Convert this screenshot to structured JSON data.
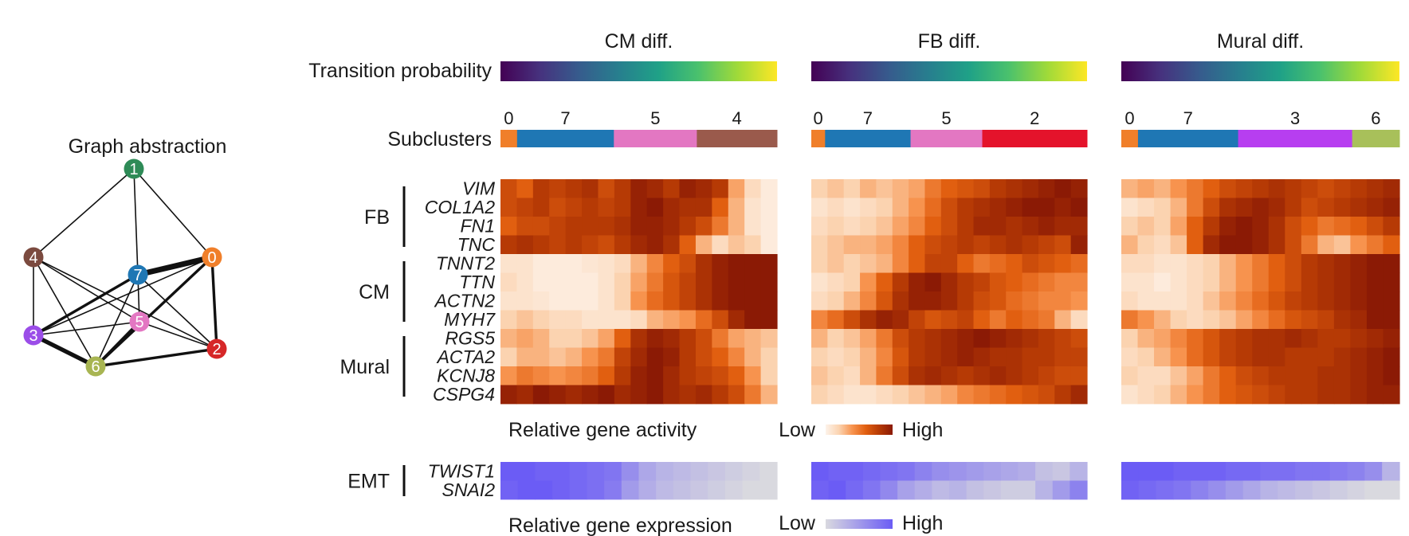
{
  "graph": {
    "title": "Graph abstraction",
    "nodes": [
      {
        "id": "1",
        "color": "#2e8b57"
      },
      {
        "id": "4",
        "color": "#7b4a3f"
      },
      {
        "id": "7",
        "color": "#1f77b4"
      },
      {
        "id": "0",
        "color": "#f07f2a"
      },
      {
        "id": "5",
        "color": "#e377c2"
      },
      {
        "id": "3",
        "color": "#9b4de8"
      },
      {
        "id": "6",
        "color": "#a8b552"
      },
      {
        "id": "2",
        "color": "#d62728"
      }
    ],
    "edges": [
      {
        "a": "1",
        "b": "4",
        "weight": 1
      },
      {
        "a": "1",
        "b": "7",
        "weight": 1
      },
      {
        "a": "1",
        "b": "0",
        "weight": 1
      },
      {
        "a": "4",
        "b": "3",
        "weight": 1
      },
      {
        "a": "4",
        "b": "6",
        "weight": 1
      },
      {
        "a": "4",
        "b": "5",
        "weight": 1
      },
      {
        "a": "4",
        "b": "2",
        "weight": 1
      },
      {
        "a": "7",
        "b": "0",
        "weight": 4
      },
      {
        "a": "7",
        "b": "3",
        "weight": 2
      },
      {
        "a": "7",
        "b": "6",
        "weight": 1
      },
      {
        "a": "7",
        "b": "2",
        "weight": 1
      },
      {
        "a": "7",
        "b": "5",
        "weight": 1
      },
      {
        "a": "0",
        "b": "3",
        "weight": 1
      },
      {
        "a": "0",
        "b": "6",
        "weight": 2
      },
      {
        "a": "0",
        "b": "2",
        "weight": 2
      },
      {
        "a": "5",
        "b": "3",
        "weight": 1
      },
      {
        "a": "5",
        "b": "2",
        "weight": 1
      },
      {
        "a": "5",
        "b": "6",
        "weight": 2
      },
      {
        "a": "3",
        "b": "6",
        "weight": 3
      },
      {
        "a": "6",
        "b": "2",
        "weight": 2
      }
    ]
  },
  "labels": {
    "transition_probability": "Transition probability",
    "subclusters": "Subclusters",
    "relative_gene_activity": "Relative gene activity",
    "relative_gene_expression": "Relative gene expression",
    "low": "Low",
    "high": "High"
  },
  "colors": {
    "viridis": [
      "#440154",
      "#46327e",
      "#365c8d",
      "#277f8e",
      "#1fa187",
      "#4ac16d",
      "#a0da39",
      "#fde725"
    ],
    "activity_scale": [
      "#fdf3ea",
      "#fbd3b0",
      "#f7934e",
      "#e15f10",
      "#b63a05",
      "#8b1a05"
    ],
    "expression_scale": [
      "#d9d9df",
      "#6b5cf5"
    ]
  },
  "gene_groups": [
    {
      "name": "FB",
      "genes": [
        "VIM",
        "COL1A2",
        "FN1",
        "TNC"
      ]
    },
    {
      "name": "CM",
      "genes": [
        "TNNT2",
        "TTN",
        "ACTN2",
        "MYH7"
      ]
    },
    {
      "name": "Mural",
      "genes": [
        "RGS5",
        "ACTA2",
        "KCNJ8",
        "CSPG4"
      ]
    }
  ],
  "emt": {
    "name": "EMT",
    "genes": [
      "TWIST1",
      "SNAI2"
    ]
  },
  "panels": [
    {
      "title": "CM diff.",
      "subclusters": [
        {
          "label": "0",
          "frac": 0.06,
          "color": "#f07f2a"
        },
        {
          "label": "7",
          "frac": 0.35,
          "color": "#1f77b4"
        },
        {
          "label": "5",
          "frac": 0.3,
          "color": "#e377c2"
        },
        {
          "label": "4",
          "frac": 0.29,
          "color": "#9a5a4c"
        }
      ],
      "activity": [
        [
          0.7,
          0.6,
          0.8,
          0.75,
          0.8,
          0.85,
          0.7,
          0.8,
          0.95,
          0.9,
          0.8,
          0.95,
          0.9,
          0.8,
          0.35,
          0.15,
          0.05
        ],
        [
          0.7,
          0.75,
          0.8,
          0.7,
          0.75,
          0.8,
          0.75,
          0.8,
          0.95,
          1.0,
          0.9,
          0.85,
          0.85,
          0.6,
          0.3,
          0.1,
          0.05
        ],
        [
          0.6,
          0.7,
          0.7,
          0.75,
          0.8,
          0.8,
          0.8,
          0.85,
          0.95,
          0.95,
          0.9,
          0.8,
          0.7,
          0.5,
          0.3,
          0.1,
          0.05
        ],
        [
          0.8,
          0.85,
          0.8,
          0.75,
          0.8,
          0.75,
          0.7,
          0.8,
          0.9,
          0.95,
          0.85,
          0.6,
          0.3,
          0.15,
          0.25,
          0.2,
          0.05
        ],
        [
          0.1,
          0.1,
          0.05,
          0.05,
          0.05,
          0.08,
          0.1,
          0.15,
          0.3,
          0.45,
          0.6,
          0.7,
          0.85,
          0.95,
          1.0,
          1.0,
          1.0
        ],
        [
          0.15,
          0.1,
          0.05,
          0.05,
          0.05,
          0.05,
          0.1,
          0.2,
          0.35,
          0.5,
          0.65,
          0.75,
          0.85,
          0.95,
          1.0,
          1.0,
          1.0
        ],
        [
          0.1,
          0.1,
          0.08,
          0.05,
          0.05,
          0.05,
          0.1,
          0.2,
          0.4,
          0.55,
          0.65,
          0.75,
          0.85,
          0.95,
          1.0,
          1.0,
          1.0
        ],
        [
          0.2,
          0.25,
          0.2,
          0.15,
          0.15,
          0.1,
          0.1,
          0.1,
          0.15,
          0.3,
          0.35,
          0.4,
          0.55,
          0.7,
          0.9,
          1.0,
          1.0
        ],
        [
          0.3,
          0.35,
          0.3,
          0.2,
          0.2,
          0.25,
          0.35,
          0.6,
          0.85,
          0.95,
          0.9,
          0.8,
          0.7,
          0.5,
          0.35,
          0.3,
          0.25
        ],
        [
          0.2,
          0.3,
          0.3,
          0.25,
          0.3,
          0.4,
          0.5,
          0.75,
          0.9,
          1.0,
          0.95,
          0.8,
          0.7,
          0.6,
          0.45,
          0.3,
          0.2
        ],
        [
          0.4,
          0.5,
          0.45,
          0.4,
          0.45,
          0.5,
          0.6,
          0.8,
          0.95,
          1.0,
          0.9,
          0.8,
          0.75,
          0.7,
          0.6,
          0.4,
          0.2
        ],
        [
          0.95,
          0.9,
          1.0,
          0.95,
          0.9,
          0.95,
          1.0,
          0.9,
          0.95,
          1.0,
          0.9,
          0.85,
          0.9,
          0.8,
          0.7,
          0.5,
          0.3
        ]
      ],
      "expression": [
        [
          1.0,
          1.0,
          0.95,
          0.95,
          0.9,
          0.85,
          0.8,
          0.6,
          0.4,
          0.3,
          0.25,
          0.2,
          0.15,
          0.1,
          0.05,
          0.0
        ],
        [
          0.95,
          1.0,
          1.0,
          0.95,
          0.9,
          0.85,
          0.75,
          0.5,
          0.35,
          0.25,
          0.2,
          0.15,
          0.1,
          0.05,
          0.0,
          0.0
        ]
      ]
    },
    {
      "title": "FB diff.",
      "subclusters": [
        {
          "label": "0",
          "frac": 0.05,
          "color": "#f07f2a"
        },
        {
          "label": "7",
          "frac": 0.31,
          "color": "#1f77b4"
        },
        {
          "label": "5",
          "frac": 0.26,
          "color": "#e377c2"
        },
        {
          "label": "2",
          "frac": 0.38,
          "color": "#e4132b"
        }
      ],
      "activity": [
        [
          0.2,
          0.25,
          0.2,
          0.3,
          0.25,
          0.3,
          0.35,
          0.5,
          0.6,
          0.65,
          0.7,
          0.8,
          0.85,
          0.9,
          0.95,
          1.0,
          0.95
        ],
        [
          0.1,
          0.15,
          0.1,
          0.15,
          0.2,
          0.3,
          0.4,
          0.55,
          0.7,
          0.8,
          0.85,
          0.9,
          0.95,
          1.0,
          1.0,
          0.95,
          1.0
        ],
        [
          0.15,
          0.2,
          0.15,
          0.2,
          0.25,
          0.35,
          0.45,
          0.6,
          0.7,
          0.8,
          0.9,
          0.9,
          0.85,
          0.9,
          0.95,
          0.9,
          0.9
        ],
        [
          0.2,
          0.25,
          0.3,
          0.3,
          0.35,
          0.45,
          0.6,
          0.7,
          0.75,
          0.8,
          0.75,
          0.8,
          0.85,
          0.8,
          0.75,
          0.7,
          0.95
        ],
        [
          0.2,
          0.25,
          0.2,
          0.25,
          0.3,
          0.45,
          0.6,
          0.75,
          0.75,
          0.6,
          0.5,
          0.55,
          0.6,
          0.7,
          0.65,
          0.6,
          0.55
        ],
        [
          0.1,
          0.15,
          0.2,
          0.4,
          0.6,
          0.8,
          0.95,
          1.0,
          0.9,
          0.8,
          0.75,
          0.65,
          0.6,
          0.55,
          0.5,
          0.45,
          0.45
        ],
        [
          0.15,
          0.2,
          0.3,
          0.45,
          0.65,
          0.85,
          0.95,
          0.95,
          0.9,
          0.8,
          0.7,
          0.65,
          0.55,
          0.5,
          0.45,
          0.45,
          0.4
        ],
        [
          0.45,
          0.55,
          0.7,
          0.85,
          0.95,
          0.9,
          0.75,
          0.65,
          0.7,
          0.75,
          0.6,
          0.5,
          0.6,
          0.55,
          0.5,
          0.3,
          0.15
        ],
        [
          0.3,
          0.2,
          0.25,
          0.35,
          0.5,
          0.7,
          0.8,
          0.85,
          0.9,
          0.95,
          1.0,
          0.95,
          0.9,
          0.85,
          0.8,
          0.75,
          0.7
        ],
        [
          0.2,
          0.15,
          0.2,
          0.3,
          0.45,
          0.65,
          0.8,
          0.85,
          0.9,
          0.95,
          0.9,
          0.85,
          0.85,
          0.8,
          0.8,
          0.75,
          0.75
        ],
        [
          0.25,
          0.2,
          0.15,
          0.3,
          0.5,
          0.7,
          0.85,
          0.9,
          0.85,
          0.8,
          0.85,
          0.9,
          0.85,
          0.8,
          0.75,
          0.7,
          0.7
        ],
        [
          0.2,
          0.15,
          0.1,
          0.1,
          0.15,
          0.2,
          0.25,
          0.3,
          0.35,
          0.45,
          0.5,
          0.55,
          0.6,
          0.65,
          0.7,
          0.8,
          0.9
        ]
      ],
      "expression": [
        [
          1.0,
          0.95,
          0.95,
          0.9,
          0.85,
          0.8,
          0.7,
          0.6,
          0.55,
          0.5,
          0.45,
          0.4,
          0.35,
          0.2,
          0.15,
          0.3
        ],
        [
          0.95,
          1.0,
          0.9,
          0.8,
          0.65,
          0.45,
          0.35,
          0.25,
          0.3,
          0.2,
          0.15,
          0.1,
          0.1,
          0.3,
          0.5,
          0.7
        ]
      ]
    },
    {
      "title": "Mural diff.",
      "subclusters": [
        {
          "label": "0",
          "frac": 0.06,
          "color": "#f07f2a"
        },
        {
          "label": "7",
          "frac": 0.36,
          "color": "#1f77b4"
        },
        {
          "label": "3",
          "frac": 0.41,
          "color": "#b73ef0"
        },
        {
          "label": "6",
          "frac": 0.17,
          "color": "#a8c05a"
        }
      ],
      "activity": [
        [
          0.3,
          0.35,
          0.3,
          0.4,
          0.5,
          0.6,
          0.7,
          0.75,
          0.8,
          0.85,
          0.8,
          0.75,
          0.7,
          0.75,
          0.8,
          0.85,
          0.9
        ],
        [
          0.1,
          0.15,
          0.2,
          0.3,
          0.5,
          0.7,
          0.85,
          0.9,
          0.95,
          0.9,
          0.8,
          0.7,
          0.75,
          0.8,
          0.85,
          0.9,
          0.95
        ],
        [
          0.2,
          0.25,
          0.2,
          0.35,
          0.6,
          0.8,
          0.95,
          1.0,
          0.95,
          0.85,
          0.7,
          0.6,
          0.5,
          0.55,
          0.6,
          0.7,
          0.8
        ],
        [
          0.3,
          0.2,
          0.15,
          0.25,
          0.6,
          0.9,
          1.0,
          1.0,
          0.95,
          0.85,
          0.7,
          0.5,
          0.3,
          0.25,
          0.4,
          0.5,
          0.6
        ],
        [
          0.15,
          0.15,
          0.1,
          0.1,
          0.15,
          0.2,
          0.3,
          0.4,
          0.5,
          0.6,
          0.7,
          0.8,
          0.85,
          0.9,
          0.95,
          1.0,
          1.0
        ],
        [
          0.1,
          0.1,
          0.05,
          0.1,
          0.15,
          0.2,
          0.3,
          0.4,
          0.5,
          0.6,
          0.7,
          0.8,
          0.85,
          0.9,
          0.95,
          1.0,
          1.0
        ],
        [
          0.15,
          0.1,
          0.1,
          0.1,
          0.15,
          0.25,
          0.35,
          0.45,
          0.55,
          0.65,
          0.75,
          0.8,
          0.85,
          0.9,
          0.95,
          1.0,
          1.0
        ],
        [
          0.5,
          0.4,
          0.3,
          0.2,
          0.15,
          0.2,
          0.25,
          0.35,
          0.45,
          0.55,
          0.65,
          0.7,
          0.75,
          0.85,
          0.9,
          1.0,
          1.0
        ],
        [
          0.2,
          0.3,
          0.35,
          0.45,
          0.55,
          0.65,
          0.75,
          0.8,
          0.85,
          0.85,
          0.9,
          0.85,
          0.8,
          0.8,
          0.85,
          0.9,
          0.95
        ],
        [
          0.15,
          0.2,
          0.3,
          0.4,
          0.55,
          0.65,
          0.75,
          0.8,
          0.85,
          0.85,
          0.8,
          0.8,
          0.8,
          0.85,
          0.9,
          0.95,
          1.0
        ],
        [
          0.2,
          0.15,
          0.15,
          0.25,
          0.35,
          0.5,
          0.6,
          0.7,
          0.75,
          0.8,
          0.8,
          0.8,
          0.85,
          0.85,
          0.9,
          0.95,
          1.0
        ],
        [
          0.1,
          0.15,
          0.2,
          0.3,
          0.4,
          0.5,
          0.6,
          0.65,
          0.7,
          0.75,
          0.8,
          0.8,
          0.85,
          0.85,
          0.9,
          0.95,
          0.95
        ]
      ],
      "expression": [
        [
          1.0,
          1.0,
          1.0,
          0.95,
          0.95,
          0.95,
          0.9,
          0.9,
          0.85,
          0.85,
          0.8,
          0.8,
          0.75,
          0.7,
          0.6,
          0.3
        ],
        [
          0.95,
          0.9,
          0.85,
          0.8,
          0.7,
          0.6,
          0.5,
          0.4,
          0.3,
          0.25,
          0.2,
          0.15,
          0.1,
          0.05,
          0.0,
          0.0
        ]
      ]
    }
  ]
}
